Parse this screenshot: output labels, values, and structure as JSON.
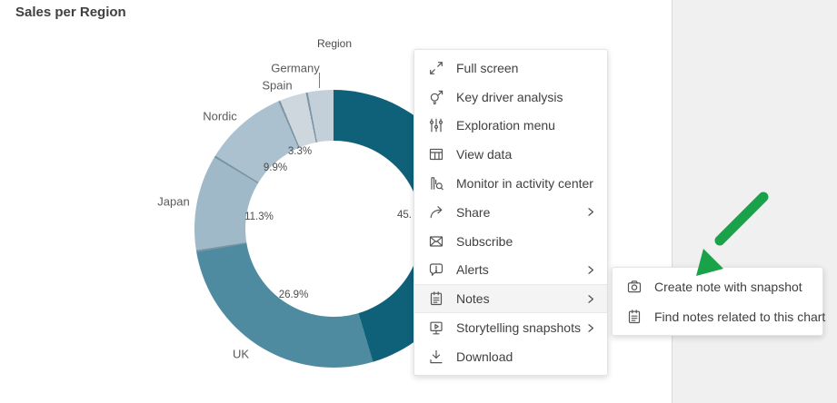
{
  "page": {
    "title": "Sales per Region"
  },
  "chart_data": {
    "type": "pie",
    "subtype": "donut",
    "title": "Sales per Region",
    "dimension_title": "Region",
    "legend": "off",
    "slices": [
      {
        "name": "",
        "pct": 45.4,
        "pct_label": "45.",
        "color": "#0f6179",
        "note": "name and rest of percent hidden behind context menu"
      },
      {
        "name": "UK",
        "pct": 26.9,
        "pct_label": "26.9%",
        "color": "#4e8ba1"
      },
      {
        "name": "Japan",
        "pct": 11.3,
        "pct_label": "11.3%",
        "color": "#a0b9c9"
      },
      {
        "name": "Nordic",
        "pct": 9.9,
        "pct_label": "9.9%",
        "color": "#abc1cf"
      },
      {
        "name": "Spain",
        "pct": 3.3,
        "pct_label": "3.3%",
        "color": "#ced7de"
      },
      {
        "name": "Germany",
        "pct": 3.2,
        "pct_label": "",
        "color": "#c3cfd9"
      }
    ]
  },
  "context_menu": {
    "items": [
      {
        "id": "full-screen",
        "label": "Full screen",
        "icon": "full-screen-icon",
        "submenu": false,
        "highlighted": false
      },
      {
        "id": "key-driver-analysis",
        "label": "Key driver analysis",
        "icon": "lightbulb-arrow-icon",
        "submenu": false,
        "highlighted": false
      },
      {
        "id": "exploration-menu",
        "label": "Exploration menu",
        "icon": "sliders-icon",
        "submenu": false,
        "highlighted": false
      },
      {
        "id": "view-data",
        "label": "View data",
        "icon": "table-icon",
        "submenu": false,
        "highlighted": false
      },
      {
        "id": "monitor-activity",
        "label": "Monitor in activity center",
        "icon": "chart-magnifier-icon",
        "submenu": false,
        "highlighted": false
      },
      {
        "id": "share",
        "label": "Share",
        "icon": "share-arrow-icon",
        "submenu": true,
        "highlighted": false
      },
      {
        "id": "subscribe",
        "label": "Subscribe",
        "icon": "envelope-icon",
        "submenu": false,
        "highlighted": false
      },
      {
        "id": "alerts",
        "label": "Alerts",
        "icon": "alert-bubble-icon",
        "submenu": true,
        "highlighted": false
      },
      {
        "id": "notes",
        "label": "Notes",
        "icon": "notepad-icon",
        "submenu": true,
        "highlighted": true
      },
      {
        "id": "storytelling-snapshots",
        "label": "Storytelling snapshots",
        "icon": "snapshot-monitor-icon",
        "submenu": true,
        "highlighted": false
      },
      {
        "id": "download",
        "label": "Download",
        "icon": "download-icon",
        "submenu": false,
        "highlighted": false
      }
    ]
  },
  "notes_submenu": {
    "items": [
      {
        "id": "create-note-with-snapshot",
        "label": "Create note with snapshot",
        "icon": "camera-icon"
      },
      {
        "id": "find-notes-related-to-chart",
        "label": "Find notes related to this chart",
        "icon": "notepad-icon"
      }
    ]
  },
  "annotation": {
    "type": "arrow",
    "direction": "down-left",
    "color": "#19a24a"
  },
  "colors": {
    "side_panel_bg": "#f0f0f0",
    "side_panel_border": "#d9d9d9",
    "menu_bg": "#ffffff",
    "menu_text": "#404040",
    "menu_highlight": "#f4f4f4",
    "slice_separator": "#7b95a5",
    "title_text": "#404040",
    "label_text": "#595959"
  }
}
